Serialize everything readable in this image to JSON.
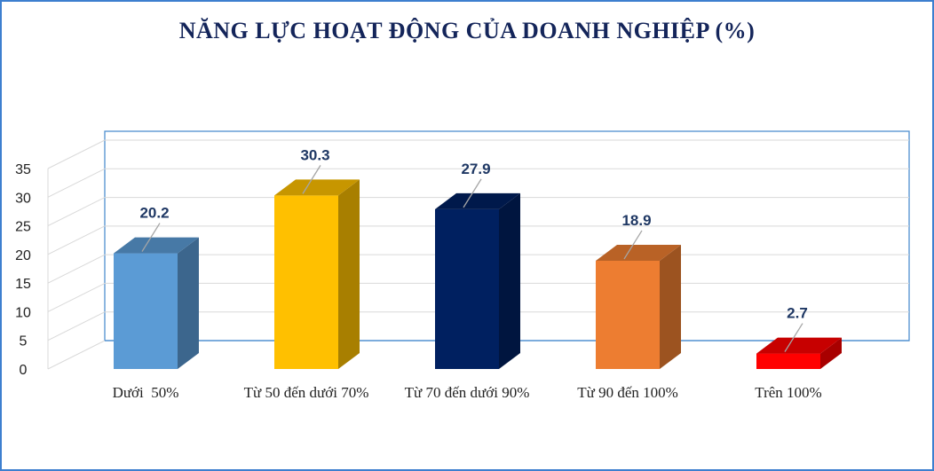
{
  "chart_data": {
    "type": "bar",
    "title": "NĂNG LỰC HOẠT ĐỘNG CỦA DOANH NGHIỆP (%)",
    "categories": [
      "Dưới  50%",
      "Từ 50 đến dưới 70%",
      "Từ 70 đến dưới 90%",
      "Từ 90 đến 100%",
      "Trên 100%"
    ],
    "values": [
      20.2,
      30.3,
      27.9,
      18.9,
      2.7
    ],
    "data_labels": [
      "20.2",
      "30.3",
      "27.9",
      "18.9",
      "2.7"
    ],
    "colors": [
      "#5b9bd5",
      "#ffc000",
      "#002060",
      "#ed7d31",
      "#ff0000"
    ],
    "ylim": [
      0,
      35
    ],
    "yticks": [
      0,
      5,
      10,
      15,
      20,
      25,
      30,
      35
    ],
    "grid": true,
    "legend": "none",
    "style": "3d-column"
  }
}
